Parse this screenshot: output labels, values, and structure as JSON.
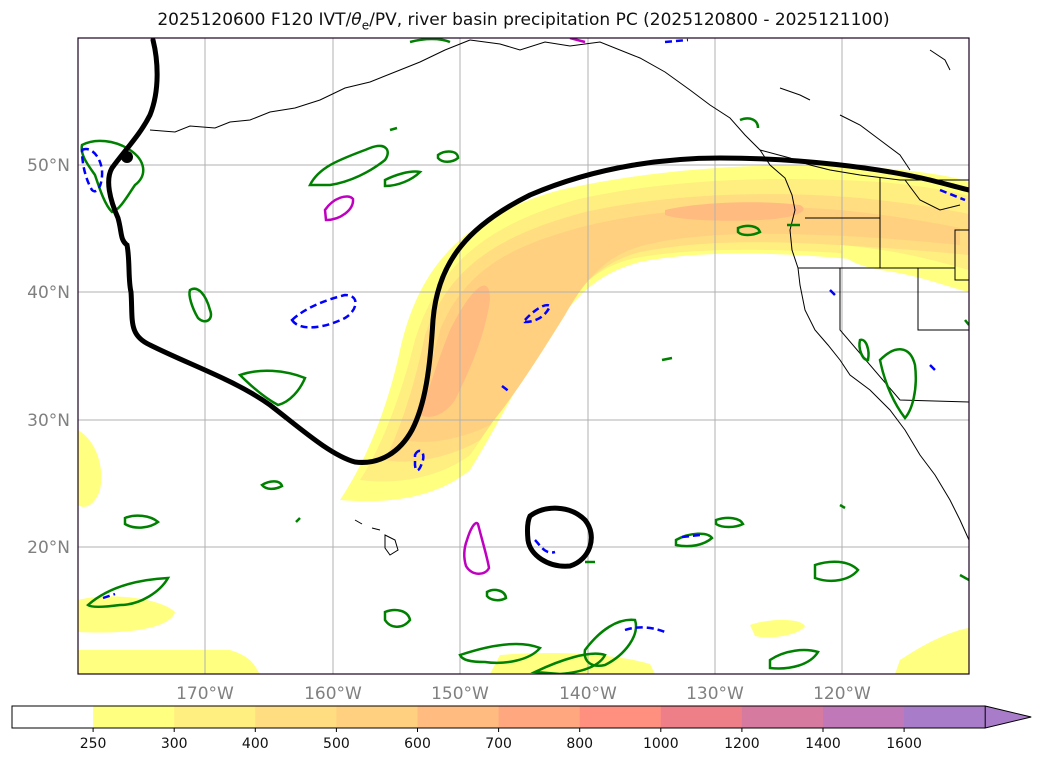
{
  "title": {
    "prefix": "2025120600 F120 IVT/",
    "theta_symbol": "θ",
    "theta_sub": "e",
    "suffix": "/PV, river basin precipitation PC (2025120800 - 2025121100)"
  },
  "axes": {
    "lat_labels": [
      "50°N",
      "40°N",
      "30°N",
      "20°N"
    ],
    "lon_labels": [
      "170°W",
      "160°W",
      "150°W",
      "140°W",
      "130°W",
      "120°W"
    ]
  },
  "colorbar": {
    "levels": [
      "250",
      "300",
      "400",
      "500",
      "600",
      "700",
      "800",
      "1000",
      "1200",
      "1400",
      "1600"
    ],
    "colors": [
      "#ffffff",
      "#ffff80",
      "#ffee80",
      "#ffdd80",
      "#ffd080",
      "#ffbb80",
      "#ffa880",
      "#ff9080",
      "#ee7f88",
      "#d77aa0",
      "#c078b8",
      "#a87cc8"
    ]
  },
  "colors": {
    "ivt_outline": "#000000",
    "theta_e": "#008000",
    "pv_dashed": "#0000ff",
    "pv_magenta": "#c000c0"
  }
}
